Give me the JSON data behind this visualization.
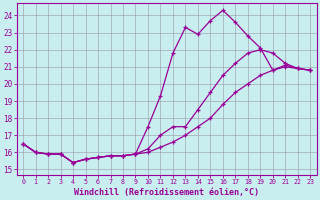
{
  "xlabel": "Windchill (Refroidissement éolien,°C)",
  "ylabel": "",
  "bg_color": "#c8eef0",
  "line_color": "#990099",
  "grid_color": "#9999aa",
  "yticks": [
    15,
    16,
    17,
    18,
    19,
    20,
    21,
    22,
    23,
    24
  ],
  "xticks": [
    0,
    1,
    2,
    3,
    4,
    5,
    6,
    7,
    8,
    9,
    10,
    11,
    12,
    13,
    14,
    15,
    16,
    17,
    18,
    19,
    20,
    21,
    22,
    23
  ],
  "series": [
    {
      "x": [
        0,
        1,
        2,
        3,
        4,
        5,
        6,
        7,
        8,
        9,
        10,
        11,
        12,
        13,
        14,
        15,
        16,
        17,
        18,
        19,
        20,
        21,
        22,
        23
      ],
      "y": [
        16.5,
        16.0,
        15.9,
        15.9,
        15.4,
        15.6,
        15.7,
        15.8,
        15.8,
        15.9,
        17.5,
        19.3,
        21.8,
        23.3,
        22.9,
        23.7,
        24.3,
        23.6,
        22.8,
        22.1,
        20.8,
        21.1,
        20.9,
        20.8
      ]
    },
    {
      "x": [
        0,
        1,
        2,
        3,
        4,
        5,
        6,
        7,
        8,
        9,
        10,
        11,
        12,
        13,
        14,
        15,
        16,
        17,
        18,
        19,
        20,
        21,
        22,
        23
      ],
      "y": [
        16.5,
        16.0,
        15.9,
        15.9,
        15.4,
        15.6,
        15.7,
        15.8,
        15.8,
        15.9,
        16.2,
        17.0,
        17.5,
        17.5,
        18.5,
        19.5,
        20.5,
        21.2,
        21.8,
        22.0,
        21.8,
        21.2,
        20.9,
        20.8
      ]
    },
    {
      "x": [
        0,
        1,
        2,
        3,
        4,
        5,
        6,
        7,
        8,
        9,
        10,
        11,
        12,
        13,
        14,
        15,
        16,
        17,
        18,
        19,
        20,
        21,
        22,
        23
      ],
      "y": [
        16.5,
        16.0,
        15.9,
        15.9,
        15.4,
        15.6,
        15.7,
        15.8,
        15.8,
        15.9,
        16.0,
        16.3,
        16.6,
        17.0,
        17.5,
        18.0,
        18.8,
        19.5,
        20.0,
        20.5,
        20.8,
        21.0,
        20.9,
        20.8
      ]
    }
  ]
}
